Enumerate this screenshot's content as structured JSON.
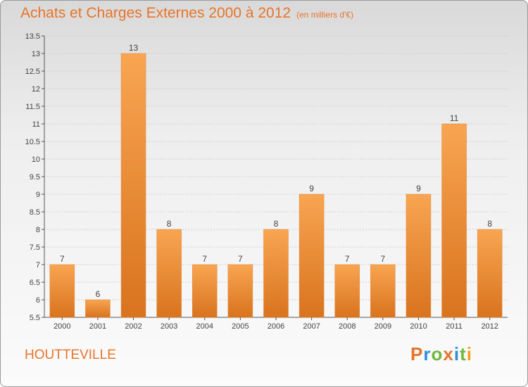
{
  "page": {
    "title": "Achats et Charges Externes 2000 à 2012",
    "subtitle": "(en milliers d'€)",
    "city": "HOUTTEVILLE",
    "brand": "Proxiti",
    "brand_colors": [
      "#e8742a",
      "#2e8fd8",
      "#6fb83b",
      "#e8742a",
      "#2e8fd8",
      "#6fb83b",
      "#f0a020"
    ]
  },
  "chart_data": {
    "type": "bar",
    "title": "Achats et Charges Externes 2000 à 2012",
    "subtitle": "(en milliers d'€)",
    "categories": [
      "2000",
      "2001",
      "2002",
      "2003",
      "2004",
      "2005",
      "2006",
      "2007",
      "2008",
      "2009",
      "2010",
      "2011",
      "2012"
    ],
    "values": [
      7,
      6,
      13,
      8,
      7,
      7,
      8,
      9,
      7,
      7,
      9,
      11,
      8
    ],
    "data_labels": [
      "7",
      "6",
      "13",
      "8",
      "7",
      "7",
      "8",
      "9",
      "7",
      "7",
      "9",
      "11",
      "8"
    ],
    "ylim": [
      5.5,
      13.5
    ],
    "yticks": [
      5.5,
      6,
      6.5,
      7,
      7.5,
      8,
      8.5,
      9,
      9.5,
      10,
      10.5,
      11,
      11.5,
      12,
      12.5,
      13,
      13.5
    ],
    "ytick_labels": [
      "5.5",
      "6",
      "6.5",
      "7",
      "7.5",
      "8",
      "8.5",
      "9",
      "9.5",
      "10",
      "10.5",
      "11",
      "11.5",
      "12",
      "12.5",
      "13",
      "13.5"
    ],
    "grid": true,
    "bar_color_top": "#f8a552",
    "bar_color_bottom": "#d9731e"
  }
}
